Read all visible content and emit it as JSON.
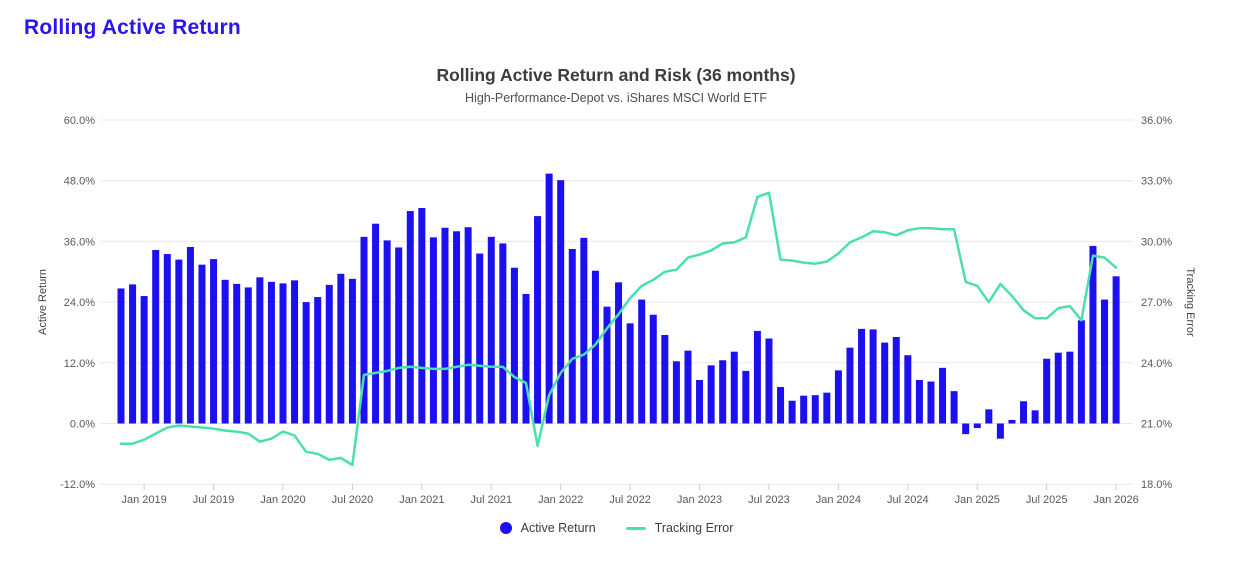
{
  "page": {
    "heading": "Rolling Active Return"
  },
  "colors": {
    "heading": "#2a14f0",
    "bar": "#1c10f0",
    "line": "#4cdfae",
    "grid": "#e8e8ea",
    "tick_mark": "#c9ccd1"
  },
  "chart_data": {
    "type": "bar",
    "title": "Rolling Active Return and Risk (36 months)",
    "subtitle": "High-Performance-Depot vs. iShares MSCI World ETF",
    "grid": true,
    "legend_position": "bottom",
    "x": [
      "Nov 2018",
      "Dec 2018",
      "Jan 2019",
      "Feb 2019",
      "Mar 2019",
      "Apr 2019",
      "May 2019",
      "Jun 2019",
      "Jul 2019",
      "Aug 2019",
      "Sep 2019",
      "Oct 2019",
      "Nov 2019",
      "Dec 2019",
      "Jan 2020",
      "Feb 2020",
      "Mar 2020",
      "Apr 2020",
      "May 2020",
      "Jun 2020",
      "Jul 2020",
      "Aug 2020",
      "Sep 2020",
      "Oct 2020",
      "Nov 2020",
      "Dec 2020",
      "Jan 2021",
      "Feb 2021",
      "Mar 2021",
      "Apr 2021",
      "May 2021",
      "Jun 2021",
      "Jul 2021",
      "Aug 2021",
      "Sep 2021",
      "Oct 2021",
      "Nov 2021",
      "Dec 2021",
      "Jan 2022",
      "Feb 2022",
      "Mar 2022",
      "Apr 2022",
      "May 2022",
      "Jun 2022",
      "Jul 2022",
      "Aug 2022",
      "Sep 2022",
      "Oct 2022",
      "Nov 2022",
      "Dec 2022",
      "Jan 2023",
      "Feb 2023",
      "Mar 2023",
      "Apr 2023",
      "May 2023",
      "Jun 2023",
      "Jul 2023",
      "Aug 2023",
      "Sep 2023",
      "Oct 2023",
      "Nov 2023",
      "Dec 2023",
      "Jan 2024",
      "Feb 2024",
      "Mar 2024",
      "Apr 2024",
      "May 2024",
      "Jun 2024",
      "Jul 2024",
      "Aug 2024",
      "Sep 2024",
      "Oct 2024",
      "Nov 2024",
      "Dec 2024",
      "Jan 2025",
      "Feb 2025",
      "Mar 2025",
      "Apr 2025",
      "May 2025",
      "Jun 2025",
      "Jul 2025",
      "Aug 2025",
      "Sep 2025",
      "Oct 2025",
      "Nov 2025",
      "Dec 2025",
      "Jan 2026"
    ],
    "x_ticks": {
      "indices": [
        2,
        8,
        14,
        20,
        26,
        32,
        38,
        44,
        50,
        56,
        62,
        68,
        74,
        80,
        86
      ],
      "labels": [
        "Jan 2019",
        "Jul 2019",
        "Jan 2020",
        "Jul 2020",
        "Jan 2021",
        "Jul 2021",
        "Jan 2022",
        "Jul 2022",
        "Jan 2023",
        "Jul 2023",
        "Jan 2024",
        "Jul 2024",
        "Jan 2025",
        "Jul 2025",
        "Jan 2026"
      ]
    },
    "left_axis": {
      "label": "Active Return",
      "min": -12,
      "max": 60,
      "tick_step": 12,
      "tick_values": [
        60,
        48,
        36,
        24,
        12,
        0,
        -12
      ],
      "tick_labels": [
        "60.0%",
        "48.0%",
        "36.0%",
        "24.0%",
        "12.0%",
        "0.0%",
        "-12.0%"
      ]
    },
    "right_axis": {
      "label": "Tracking Error",
      "min": 18,
      "max": 36,
      "tick_step": 3,
      "tick_values": [
        36,
        33,
        30,
        27,
        24,
        21,
        18
      ],
      "tick_labels": [
        "36.0%",
        "33.0%",
        "30.0%",
        "27.0%",
        "24.0%",
        "21.0%",
        "18.0%"
      ]
    },
    "series": [
      {
        "name": "Active Return",
        "type": "bar",
        "axis": "left",
        "unit": "%",
        "color": "#1c10f0",
        "values": [
          26.7,
          27.5,
          25.2,
          34.3,
          33.5,
          32.4,
          34.9,
          31.4,
          32.5,
          28.4,
          27.6,
          26.9,
          28.9,
          28.0,
          27.7,
          28.3,
          24.0,
          25.0,
          27.4,
          29.6,
          28.6,
          36.9,
          39.5,
          36.2,
          34.8,
          42.0,
          42.6,
          36.8,
          38.7,
          38.0,
          38.8,
          33.6,
          36.9,
          35.6,
          30.8,
          25.6,
          41.0,
          49.4,
          48.1,
          34.5,
          36.7,
          30.2,
          23.1,
          27.9,
          19.8,
          24.5,
          21.5,
          17.5,
          12.3,
          14.4,
          8.6,
          11.5,
          12.5,
          14.2,
          10.4,
          18.3,
          16.8,
          7.2,
          4.5,
          5.5,
          5.6,
          6.1,
          10.5,
          15.0,
          18.7,
          18.6,
          16.0,
          17.1,
          13.5,
          8.6,
          8.3,
          11.0,
          6.4,
          -2.1,
          -0.9,
          2.8,
          -3.0,
          0.7,
          4.4,
          2.6,
          12.8,
          14.0,
          14.2,
          20.4,
          35.1,
          24.5,
          29.1
        ]
      },
      {
        "name": "Tracking Error",
        "type": "line",
        "axis": "right",
        "unit": "%",
        "color": "#4cdfae",
        "values": [
          20.0,
          20.0,
          20.2,
          20.5,
          20.8,
          20.9,
          20.85,
          20.8,
          20.75,
          20.65,
          20.6,
          20.5,
          20.1,
          20.25,
          20.6,
          20.4,
          19.6,
          19.5,
          19.2,
          19.3,
          18.95,
          23.4,
          23.5,
          23.6,
          23.75,
          23.8,
          23.75,
          23.7,
          23.7,
          23.8,
          23.9,
          23.85,
          23.8,
          23.8,
          23.3,
          23.0,
          19.9,
          22.4,
          23.5,
          24.2,
          24.4,
          24.9,
          25.7,
          26.4,
          27.2,
          27.8,
          28.1,
          28.5,
          28.6,
          29.2,
          29.35,
          29.55,
          29.9,
          29.95,
          30.2,
          32.2,
          32.4,
          29.1,
          29.05,
          28.95,
          28.9,
          29.0,
          29.4,
          29.95,
          30.2,
          30.5,
          30.45,
          30.3,
          30.55,
          30.65,
          30.65,
          30.6,
          30.6,
          28.0,
          27.8,
          27.0,
          27.9,
          27.3,
          26.6,
          26.2,
          26.2,
          26.7,
          26.8,
          26.1,
          29.3,
          29.2,
          28.7
        ]
      }
    ]
  },
  "legend": {
    "items": [
      {
        "label": "Active Return",
        "swatch": "dot"
      },
      {
        "label": "Tracking Error",
        "swatch": "line"
      }
    ]
  }
}
